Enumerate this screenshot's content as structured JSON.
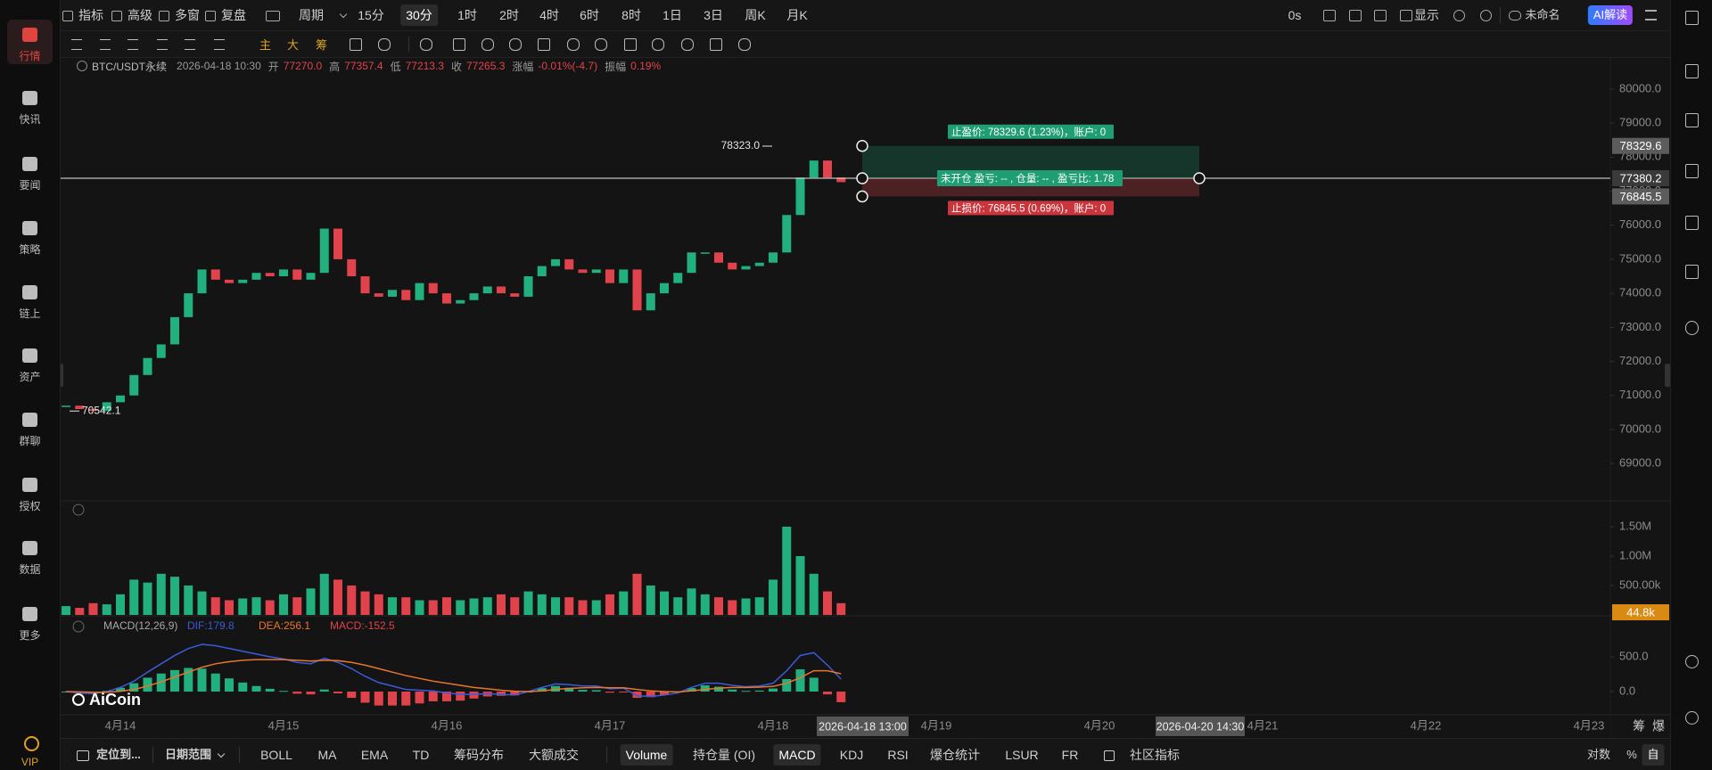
{
  "sidebar": {
    "items": [
      "行情",
      "快讯",
      "要闻",
      "策略",
      "链上",
      "资产",
      "群聊",
      "授权",
      "数据",
      "更多"
    ],
    "vip": "VIP"
  },
  "top_toolbar": {
    "tools": [
      "指标",
      "高级",
      "多窗",
      "复盘"
    ],
    "period": "周期",
    "intervals": [
      "15分",
      "30分",
      "1时",
      "2时",
      "4时",
      "6时",
      "8时",
      "1日",
      "3日",
      "周K",
      "月K"
    ],
    "timer": "0s",
    "display": "显示",
    "layout_name": "未命名",
    "ai": "AI解读"
  },
  "draw_toolbar": {
    "modes": [
      "主",
      "大",
      "筹"
    ]
  },
  "info_bar": {
    "symbol": "BTC/USDT永续",
    "time": "2026-04-18 10:30",
    "fields": [
      {
        "label": "开",
        "value": "77270.0"
      },
      {
        "label": "高",
        "value": "77357.4"
      },
      {
        "label": "低",
        "value": "77213.3"
      },
      {
        "label": "收",
        "value": "77265.3"
      },
      {
        "label": "涨幅",
        "value": "-0.01%(-4.7)"
      },
      {
        "label": "振幅",
        "value": "0.19%"
      }
    ]
  },
  "position_tool": {
    "take_profit": "止盈价: 78329.6 (1.23%)，账户: 0",
    "entry": "未开仓 盈亏: -- , 仓量: -- , 盈亏比: 1.78",
    "stop_loss": "止损价: 76845.5 (0.69%)，账户: 0"
  },
  "watermark": "AiCoin",
  "time_axis": {
    "cursor_labels": [
      "2026-04-18 13:00",
      "2026-04-20 14:30"
    ],
    "future_dates": [
      "4月19",
      "4月20",
      "4月21",
      "4月22",
      "4月23"
    ],
    "corner": [
      "筹",
      "爆"
    ]
  },
  "bottom_bar": {
    "locate": "定位到...",
    "date_range": "日期范围",
    "indicators": [
      "BOLL",
      "MA",
      "EMA",
      "TD",
      "筹码分布",
      "大额成交",
      "Volume",
      "持仓量 (OI)",
      "MACD",
      "KDJ",
      "RSI",
      "爆仓统计",
      "LSUR",
      "FR",
      "社区指标"
    ],
    "scale_modes": [
      "对数",
      "%",
      "自动"
    ]
  },
  "chart_data": [
    {
      "type": "candlestick",
      "color_up": "#22b07f",
      "color_down": "#e0434b",
      "categories": [
        null,
        null,
        null,
        null,
        "4月14",
        null,
        null,
        null,
        null,
        null,
        null,
        null,
        null,
        null,
        null,
        null,
        "4月15",
        null,
        null,
        null,
        null,
        null,
        null,
        null,
        null,
        null,
        null,
        null,
        "4月16",
        null,
        null,
        null,
        null,
        null,
        null,
        null,
        null,
        null,
        null,
        null,
        "4月17",
        null,
        null,
        null,
        null,
        null,
        null,
        null,
        null,
        null,
        null,
        null,
        "4月18",
        null,
        null,
        null,
        null,
        null
      ],
      "values": [
        70700,
        70600,
        70550,
        70800,
        71000,
        71600,
        72100,
        72500,
        73300,
        74000,
        74700,
        74400,
        74300,
        74400,
        74600,
        74500,
        74700,
        74400,
        74600,
        75900,
        75000,
        74500,
        74000,
        73900,
        74100,
        73800,
        74300,
        74000,
        73700,
        73800,
        74000,
        74200,
        74000,
        73900,
        74500,
        74800,
        75000,
        74700,
        74600,
        74700,
        74300,
        74700,
        73500,
        74000,
        74300,
        74600,
        75200,
        75200,
        74900,
        74700,
        74800,
        74900,
        75200,
        76300,
        77400,
        77900,
        77400,
        77265.3
      ],
      "ylim": [
        67930,
        80940
      ],
      "yticks": [
        {
          "value": 69000,
          "label": "69000.0"
        },
        {
          "value": 70000,
          "label": "70000.0"
        },
        {
          "value": 71000,
          "label": "71000.0"
        },
        {
          "value": 72000,
          "label": "72000.0"
        },
        {
          "value": 73000,
          "label": "73000.0"
        },
        {
          "value": 74000,
          "label": "74000.0"
        },
        {
          "value": 75000,
          "label": "75000.0"
        },
        {
          "value": 76000,
          "label": "76000.0"
        },
        {
          "value": 77000,
          "label": "77000.0"
        },
        {
          "value": 78000,
          "label": "78000.0"
        },
        {
          "value": 79000,
          "label": "79000.0"
        },
        {
          "value": 80000,
          "label": "80000.0"
        }
      ],
      "annotations": [
        {
          "value": 78323.0,
          "label": "78323.0"
        },
        {
          "value": 70542.1,
          "label": "70542.1"
        }
      ],
      "markers": [
        {
          "value": 78329.6,
          "label": "78329.6"
        },
        {
          "value": 77380.2,
          "label": "77380.2"
        },
        {
          "value": 76845.5,
          "label": "76845.5"
        }
      ]
    },
    {
      "type": "volume",
      "values": [
        150000,
        120000,
        200000,
        180000,
        350000,
        600000,
        550000,
        700000,
        650000,
        500000,
        400000,
        300000,
        250000,
        280000,
        300000,
        250000,
        350000,
        300000,
        450000,
        700000,
        600000,
        500000,
        400000,
        350000,
        300000,
        300000,
        250000,
        250000,
        300000,
        250000,
        280000,
        300000,
        350000,
        300000,
        400000,
        350000,
        300000,
        300000,
        250000,
        250000,
        350000,
        400000,
        700000,
        500000,
        400000,
        300000,
        450000,
        350000,
        300000,
        250000,
        280000,
        300000,
        600000,
        1500000,
        1000000,
        700000,
        400000,
        200000
      ],
      "ylim": [
        0,
        1924000
      ],
      "yticks": [
        {
          "value": 500000,
          "label": "500.00k"
        },
        {
          "value": 1000000,
          "label": "1.00M"
        },
        {
          "value": 1500000,
          "label": "1.50M"
        }
      ],
      "markers": [
        {
          "value": 44800,
          "label": "44.8k"
        }
      ]
    },
    {
      "type": "macd",
      "title": "MACD(12,26,9)",
      "color_up": "#22b07f",
      "color_down": "#e0434b",
      "series": [
        {
          "name": "DIF:179.8",
          "color": "#3b5bdb",
          "values": [
            0,
            -20,
            -30,
            0,
            60,
            150,
            280,
            400,
            520,
            620,
            680,
            660,
            620,
            580,
            540,
            500,
            470,
            420,
            400,
            480,
            420,
            330,
            220,
            130,
            80,
            30,
            20,
            10,
            -20,
            -40,
            -40,
            -30,
            -40,
            -50,
            0,
            60,
            110,
            100,
            80,
            80,
            40,
            50,
            -60,
            -70,
            -50,
            -20,
            60,
            120,
            120,
            90,
            70,
            80,
            120,
            300,
            520,
            560,
            380,
            179.8
          ]
        },
        {
          "name": "DEA:256.1",
          "color": "#e8762c",
          "values": [
            0,
            -5,
            -10,
            -10,
            5,
            30,
            80,
            140,
            210,
            280,
            350,
            400,
            430,
            450,
            460,
            460,
            460,
            450,
            440,
            450,
            445,
            420,
            380,
            330,
            280,
            230,
            190,
            150,
            120,
            90,
            60,
            40,
            20,
            5,
            0,
            10,
            30,
            45,
            55,
            60,
            55,
            55,
            30,
            10,
            0,
            -5,
            10,
            30,
            50,
            60,
            60,
            65,
            75,
            120,
            200,
            300,
            300,
            256.1
          ]
        },
        {
          "name": "MACD:-152.5",
          "color": "#e0434b",
          "values": [
            0,
            -15,
            -20,
            10,
            55,
            120,
            200,
            260,
            310,
            340,
            330,
            260,
            190,
            130,
            80,
            40,
            10,
            -30,
            -40,
            30,
            -25,
            -90,
            -160,
            -200,
            -200,
            -200,
            -170,
            -140,
            -140,
            -130,
            -100,
            -70,
            -60,
            -55,
            0,
            50,
            80,
            55,
            25,
            20,
            -15,
            -5,
            -90,
            -80,
            -50,
            -15,
            50,
            90,
            70,
            30,
            10,
            15,
            45,
            180,
            320,
            200,
            -40,
            -152.5
          ]
        }
      ],
      "ylim": [
        -333,
        1077
      ],
      "yticks": [
        {
          "value": 0,
          "label": "0.0"
        },
        {
          "value": 500,
          "label": "500.0"
        }
      ]
    }
  ]
}
